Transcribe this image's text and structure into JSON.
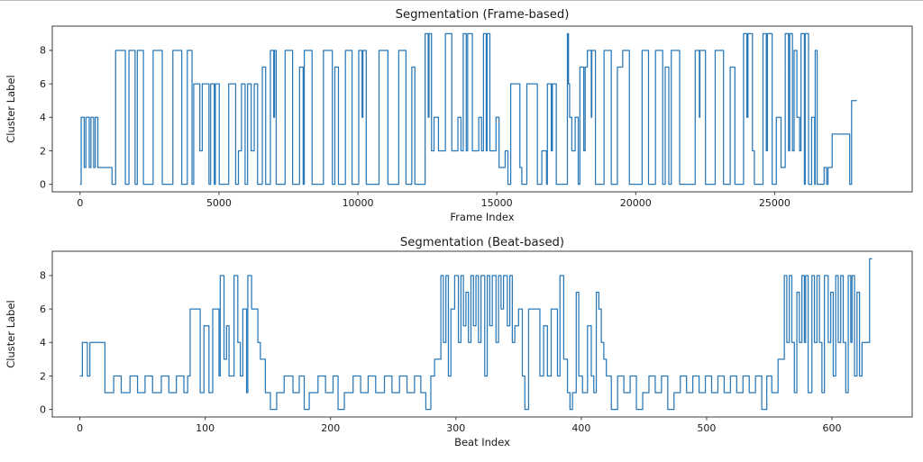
{
  "figure": {
    "background": "#ffffff"
  },
  "chart_data": [
    {
      "type": "line",
      "style": "step-post",
      "title": "Segmentation (Frame-based)",
      "xlabel": "Frame Index",
      "ylabel": "Cluster Label",
      "x_ticks": [
        0,
        5000,
        10000,
        15000,
        20000,
        25000
      ],
      "y_ticks": [
        0,
        2,
        4,
        6,
        8
      ],
      "xlim": [
        -1000,
        29950
      ],
      "ylim": [
        -0.45,
        9.45
      ],
      "grid": false,
      "legend": null,
      "line_color": "#2878b8",
      "encoding": "pairs of [frame_index, cluster_label]; label holds until next pair",
      "x_end": 27960,
      "steps": [
        [
          0,
          0
        ],
        [
          40,
          4
        ],
        [
          150,
          1
        ],
        [
          210,
          4
        ],
        [
          330,
          1
        ],
        [
          390,
          4
        ],
        [
          490,
          1
        ],
        [
          550,
          4
        ],
        [
          640,
          1
        ],
        [
          1150,
          0
        ],
        [
          1280,
          8
        ],
        [
          1630,
          0
        ],
        [
          1760,
          8
        ],
        [
          1980,
          0
        ],
        [
          2060,
          8
        ],
        [
          2280,
          0
        ],
        [
          2630,
          8
        ],
        [
          2960,
          0
        ],
        [
          3340,
          8
        ],
        [
          3660,
          0
        ],
        [
          3860,
          8
        ],
        [
          4030,
          0
        ],
        [
          4090,
          6
        ],
        [
          4310,
          2
        ],
        [
          4400,
          6
        ],
        [
          4640,
          0
        ],
        [
          4700,
          6
        ],
        [
          4830,
          0
        ],
        [
          4870,
          6
        ],
        [
          5010,
          0
        ],
        [
          5350,
          6
        ],
        [
          5600,
          0
        ],
        [
          5700,
          2
        ],
        [
          5810,
          6
        ],
        [
          5940,
          0
        ],
        [
          6030,
          6
        ],
        [
          6160,
          2
        ],
        [
          6270,
          6
        ],
        [
          6390,
          0
        ],
        [
          6560,
          7
        ],
        [
          6680,
          0
        ],
        [
          6850,
          8
        ],
        [
          6970,
          4
        ],
        [
          7000,
          8
        ],
        [
          7060,
          0
        ],
        [
          7380,
          8
        ],
        [
          7650,
          0
        ],
        [
          7900,
          7
        ],
        [
          8030,
          0
        ],
        [
          8070,
          8
        ],
        [
          8350,
          0
        ],
        [
          8760,
          8
        ],
        [
          9080,
          0
        ],
        [
          9170,
          7
        ],
        [
          9300,
          0
        ],
        [
          9550,
          8
        ],
        [
          9790,
          0
        ],
        [
          10030,
          8
        ],
        [
          10150,
          4
        ],
        [
          10180,
          8
        ],
        [
          10300,
          0
        ],
        [
          10760,
          8
        ],
        [
          11080,
          0
        ],
        [
          11470,
          8
        ],
        [
          11730,
          0
        ],
        [
          11940,
          7
        ],
        [
          12050,
          0
        ],
        [
          12420,
          9
        ],
        [
          12530,
          4
        ],
        [
          12560,
          9
        ],
        [
          12650,
          2
        ],
        [
          12740,
          4
        ],
        [
          12900,
          2
        ],
        [
          13150,
          9
        ],
        [
          13380,
          2
        ],
        [
          13600,
          4
        ],
        [
          13710,
          2
        ],
        [
          13790,
          9
        ],
        [
          13900,
          2
        ],
        [
          13950,
          9
        ],
        [
          14120,
          2
        ],
        [
          14350,
          4
        ],
        [
          14450,
          2
        ],
        [
          14520,
          9
        ],
        [
          14620,
          2
        ],
        [
          14650,
          9
        ],
        [
          14750,
          2
        ],
        [
          14970,
          4
        ],
        [
          15080,
          1
        ],
        [
          15300,
          2
        ],
        [
          15400,
          0
        ],
        [
          15500,
          6
        ],
        [
          15830,
          1
        ],
        [
          15900,
          0
        ],
        [
          16080,
          6
        ],
        [
          16460,
          0
        ],
        [
          16620,
          2
        ],
        [
          16790,
          0
        ],
        [
          16820,
          6
        ],
        [
          16960,
          2
        ],
        [
          17000,
          6
        ],
        [
          17140,
          0
        ],
        [
          17540,
          9
        ],
        [
          17580,
          6
        ],
        [
          17620,
          4
        ],
        [
          17700,
          2
        ],
        [
          17820,
          4
        ],
        [
          17930,
          0
        ],
        [
          17990,
          7
        ],
        [
          18130,
          2
        ],
        [
          18180,
          7
        ],
        [
          18260,
          8
        ],
        [
          18400,
          4
        ],
        [
          18420,
          8
        ],
        [
          18550,
          0
        ],
        [
          18860,
          8
        ],
        [
          19120,
          0
        ],
        [
          19340,
          7
        ],
        [
          19530,
          8
        ],
        [
          19770,
          0
        ],
        [
          20230,
          8
        ],
        [
          20460,
          0
        ],
        [
          20710,
          8
        ],
        [
          20970,
          0
        ],
        [
          21060,
          7
        ],
        [
          21190,
          0
        ],
        [
          21280,
          8
        ],
        [
          21580,
          0
        ],
        [
          22140,
          8
        ],
        [
          22290,
          4
        ],
        [
          22310,
          8
        ],
        [
          22510,
          0
        ],
        [
          22860,
          8
        ],
        [
          23160,
          0
        ],
        [
          23400,
          7
        ],
        [
          23570,
          0
        ],
        [
          23880,
          9
        ],
        [
          24000,
          4
        ],
        [
          24040,
          9
        ],
        [
          24200,
          2
        ],
        [
          24270,
          0
        ],
        [
          24580,
          9
        ],
        [
          24700,
          2
        ],
        [
          24740,
          9
        ],
        [
          24910,
          0
        ],
        [
          25060,
          4
        ],
        [
          25230,
          1
        ],
        [
          25380,
          9
        ],
        [
          25500,
          2
        ],
        [
          25540,
          9
        ],
        [
          25640,
          2
        ],
        [
          25700,
          8
        ],
        [
          25800,
          4
        ],
        [
          25900,
          2
        ],
        [
          25950,
          9
        ],
        [
          26070,
          0
        ],
        [
          26100,
          9
        ],
        [
          26220,
          0
        ],
        [
          26330,
          4
        ],
        [
          26440,
          0
        ],
        [
          26460,
          8
        ],
        [
          26530,
          0
        ],
        [
          26780,
          1
        ],
        [
          26870,
          0
        ],
        [
          26920,
          1
        ],
        [
          27070,
          3
        ],
        [
          27700,
          0
        ],
        [
          27770,
          5
        ]
      ]
    },
    {
      "type": "line",
      "style": "step-post",
      "title": "Segmentation (Beat-based)",
      "xlabel": "Beat Index",
      "ylabel": "Cluster Label",
      "x_ticks": [
        0,
        100,
        200,
        300,
        400,
        500,
        600
      ],
      "y_ticks": [
        0,
        2,
        4,
        6,
        8
      ],
      "xlim": [
        -22,
        664
      ],
      "ylim": [
        -0.45,
        9.45
      ],
      "grid": false,
      "legend": null,
      "line_color": "#2878b8",
      "encoding": "pairs of [beat_index, cluster_label]; label holds until next pair",
      "x_end": 632,
      "steps": [
        [
          0,
          2
        ],
        [
          2,
          4
        ],
        [
          6,
          2
        ],
        [
          8,
          4
        ],
        [
          20,
          1
        ],
        [
          27,
          2
        ],
        [
          33,
          1
        ],
        [
          40,
          2
        ],
        [
          46,
          1
        ],
        [
          52,
          2
        ],
        [
          58,
          1
        ],
        [
          65,
          2
        ],
        [
          71,
          1
        ],
        [
          77,
          2
        ],
        [
          83,
          1
        ],
        [
          86,
          2
        ],
        [
          88,
          6
        ],
        [
          96,
          1
        ],
        [
          99,
          5
        ],
        [
          103,
          1
        ],
        [
          106,
          6
        ],
        [
          111,
          2
        ],
        [
          112,
          8
        ],
        [
          115,
          3
        ],
        [
          117,
          5
        ],
        [
          119,
          2
        ],
        [
          123,
          8
        ],
        [
          126,
          4
        ],
        [
          128,
          2
        ],
        [
          130,
          6
        ],
        [
          133,
          1
        ],
        [
          134,
          8
        ],
        [
          137,
          6
        ],
        [
          142,
          4
        ],
        [
          144,
          3
        ],
        [
          148,
          1
        ],
        [
          152,
          0
        ],
        [
          157,
          1
        ],
        [
          163,
          2
        ],
        [
          170,
          1
        ],
        [
          175,
          2
        ],
        [
          179,
          0
        ],
        [
          183,
          1
        ],
        [
          190,
          2
        ],
        [
          196,
          1
        ],
        [
          202,
          2
        ],
        [
          206,
          0
        ],
        [
          211,
          1
        ],
        [
          218,
          2
        ],
        [
          224,
          1
        ],
        [
          230,
          2
        ],
        [
          236,
          1
        ],
        [
          243,
          2
        ],
        [
          249,
          1
        ],
        [
          255,
          2
        ],
        [
          261,
          1
        ],
        [
          267,
          2
        ],
        [
          272,
          1
        ],
        [
          276,
          0
        ],
        [
          280,
          2
        ],
        [
          283,
          3
        ],
        [
          288,
          8
        ],
        [
          290,
          4
        ],
        [
          292,
          8
        ],
        [
          294,
          2
        ],
        [
          296,
          6
        ],
        [
          299,
          8
        ],
        [
          302,
          4
        ],
        [
          304,
          8
        ],
        [
          306,
          5
        ],
        [
          308,
          7
        ],
        [
          310,
          4
        ],
        [
          312,
          8
        ],
        [
          314,
          5
        ],
        [
          316,
          8
        ],
        [
          318,
          4
        ],
        [
          320,
          8
        ],
        [
          323,
          2
        ],
        [
          325,
          8
        ],
        [
          327,
          5
        ],
        [
          329,
          8
        ],
        [
          332,
          4
        ],
        [
          334,
          8
        ],
        [
          336,
          6
        ],
        [
          338,
          8
        ],
        [
          341,
          5
        ],
        [
          343,
          8
        ],
        [
          345,
          4
        ],
        [
          347,
          5
        ],
        [
          350,
          6
        ],
        [
          353,
          2
        ],
        [
          355,
          0
        ],
        [
          358,
          6
        ],
        [
          367,
          2
        ],
        [
          370,
          5
        ],
        [
          373,
          2
        ],
        [
          376,
          6
        ],
        [
          381,
          2
        ],
        [
          383,
          8
        ],
        [
          386,
          3
        ],
        [
          389,
          1
        ],
        [
          391,
          0
        ],
        [
          393,
          1
        ],
        [
          396,
          7
        ],
        [
          398,
          2
        ],
        [
          401,
          1
        ],
        [
          405,
          5
        ],
        [
          408,
          2
        ],
        [
          410,
          1
        ],
        [
          412,
          7
        ],
        [
          414,
          6
        ],
        [
          416,
          4
        ],
        [
          418,
          3
        ],
        [
          420,
          2
        ],
        [
          424,
          0
        ],
        [
          429,
          2
        ],
        [
          434,
          1
        ],
        [
          439,
          2
        ],
        [
          444,
          0
        ],
        [
          449,
          1
        ],
        [
          454,
          2
        ],
        [
          459,
          1
        ],
        [
          464,
          2
        ],
        [
          469,
          0
        ],
        [
          474,
          1
        ],
        [
          479,
          2
        ],
        [
          484,
          1
        ],
        [
          489,
          2
        ],
        [
          494,
          1
        ],
        [
          499,
          2
        ],
        [
          504,
          1
        ],
        [
          509,
          2
        ],
        [
          514,
          1
        ],
        [
          519,
          2
        ],
        [
          524,
          1
        ],
        [
          529,
          2
        ],
        [
          534,
          1
        ],
        [
          539,
          2
        ],
        [
          544,
          0
        ],
        [
          548,
          2
        ],
        [
          552,
          1
        ],
        [
          557,
          3
        ],
        [
          562,
          8
        ],
        [
          564,
          4
        ],
        [
          566,
          8
        ],
        [
          568,
          4
        ],
        [
          570,
          1
        ],
        [
          572,
          7
        ],
        [
          574,
          4
        ],
        [
          576,
          8
        ],
        [
          578,
          4
        ],
        [
          579,
          8
        ],
        [
          581,
          1
        ],
        [
          584,
          8
        ],
        [
          586,
          4
        ],
        [
          588,
          8
        ],
        [
          590,
          4
        ],
        [
          592,
          1
        ],
        [
          594,
          8
        ],
        [
          597,
          4
        ],
        [
          599,
          7
        ],
        [
          601,
          2
        ],
        [
          603,
          8
        ],
        [
          605,
          4
        ],
        [
          607,
          8
        ],
        [
          609,
          4
        ],
        [
          611,
          1
        ],
        [
          613,
          8
        ],
        [
          615,
          4
        ],
        [
          616,
          8
        ],
        [
          618,
          2
        ],
        [
          620,
          7
        ],
        [
          622,
          2
        ],
        [
          624,
          4
        ],
        [
          630,
          9
        ]
      ]
    }
  ]
}
